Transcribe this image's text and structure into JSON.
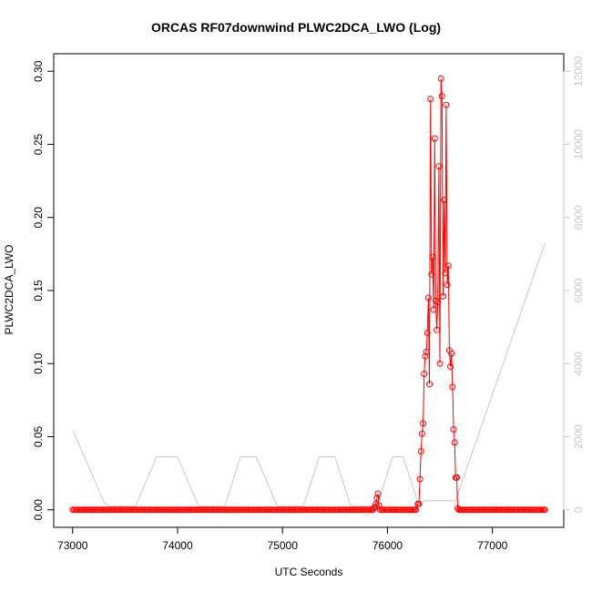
{
  "chart_data": {
    "type": "line",
    "title": "ORCAS RF07downwind PLWC2DCA_LWO (Log)",
    "xlabel": "UTC Seconds",
    "ylabel": "PLWC2DCA_LWO",
    "xlim": [
      73000,
      77500
    ],
    "ylim": [
      0,
      0.3
    ],
    "y2lim": [
      0,
      12000
    ],
    "x_ticks": [
      73000,
      74000,
      75000,
      76000,
      77000
    ],
    "y_ticks": [
      0.0,
      0.05,
      0.1,
      0.15,
      0.2,
      0.25,
      0.3
    ],
    "y_tick_labels": [
      "0.00",
      "0.05",
      "0.10",
      "0.15",
      "0.20",
      "0.25",
      "0.30"
    ],
    "y2_ticks": [
      0,
      2000,
      4000,
      6000,
      8000,
      10000,
      12000
    ],
    "y2_tick_labels": [
      "0",
      "2000",
      "4000",
      "6000",
      "8000",
      "10000",
      "12000"
    ],
    "grid": false,
    "colors": {
      "primary": "#ff0000",
      "secondary": "#c8c8c8",
      "frame": "#000000"
    },
    "series": [
      {
        "axis": "left",
        "style": "line+points",
        "x": [
          73000,
          75860,
          75870,
          75880,
          75890,
          75900,
          75910,
          75920,
          75930,
          76270,
          76290,
          76300,
          76310,
          76320,
          76330,
          76340,
          76350,
          76360,
          76370,
          76380,
          76390,
          76400,
          76410,
          76420,
          76430,
          76440,
          76450,
          76460,
          76470,
          76480,
          76490,
          76500,
          76510,
          76520,
          76530,
          76540,
          76550,
          76560,
          76570,
          76580,
          76590,
          76600,
          76610,
          76620,
          76630,
          76640,
          76650,
          76660,
          76670,
          76680,
          77500
        ],
        "y": [
          0,
          0,
          0.001,
          0.002,
          0.004,
          0.008,
          0.011,
          0.003,
          0,
          0,
          0.004,
          0.004,
          0.021,
          0.04,
          0.052,
          0.059,
          0.093,
          0.105,
          0.108,
          0.121,
          0.145,
          0.086,
          0.281,
          0.161,
          0.173,
          0.137,
          0.254,
          0.143,
          0.123,
          0.142,
          0.235,
          0.1,
          0.295,
          0.283,
          0.146,
          0.212,
          0.162,
          0.277,
          0.154,
          0.167,
          0.109,
          0.098,
          0.107,
          0.084,
          0.055,
          0.046,
          0.022,
          0.022,
          0.001,
          0,
          0
        ]
      },
      {
        "axis": "right",
        "style": "line",
        "x": [
          73000,
          73300,
          73350,
          73600,
          73800,
          74000,
          74200,
          74450,
          74600,
          74750,
          74950,
          75200,
          75350,
          75500,
          75650,
          75900,
          76050,
          76150,
          76300,
          76350,
          76650,
          77500
        ],
        "y": [
          2200,
          200,
          100,
          100,
          1450,
          1450,
          100,
          100,
          1450,
          1450,
          100,
          100,
          1450,
          1450,
          100,
          100,
          1450,
          1450,
          100,
          250,
          250,
          7300
        ]
      }
    ]
  }
}
